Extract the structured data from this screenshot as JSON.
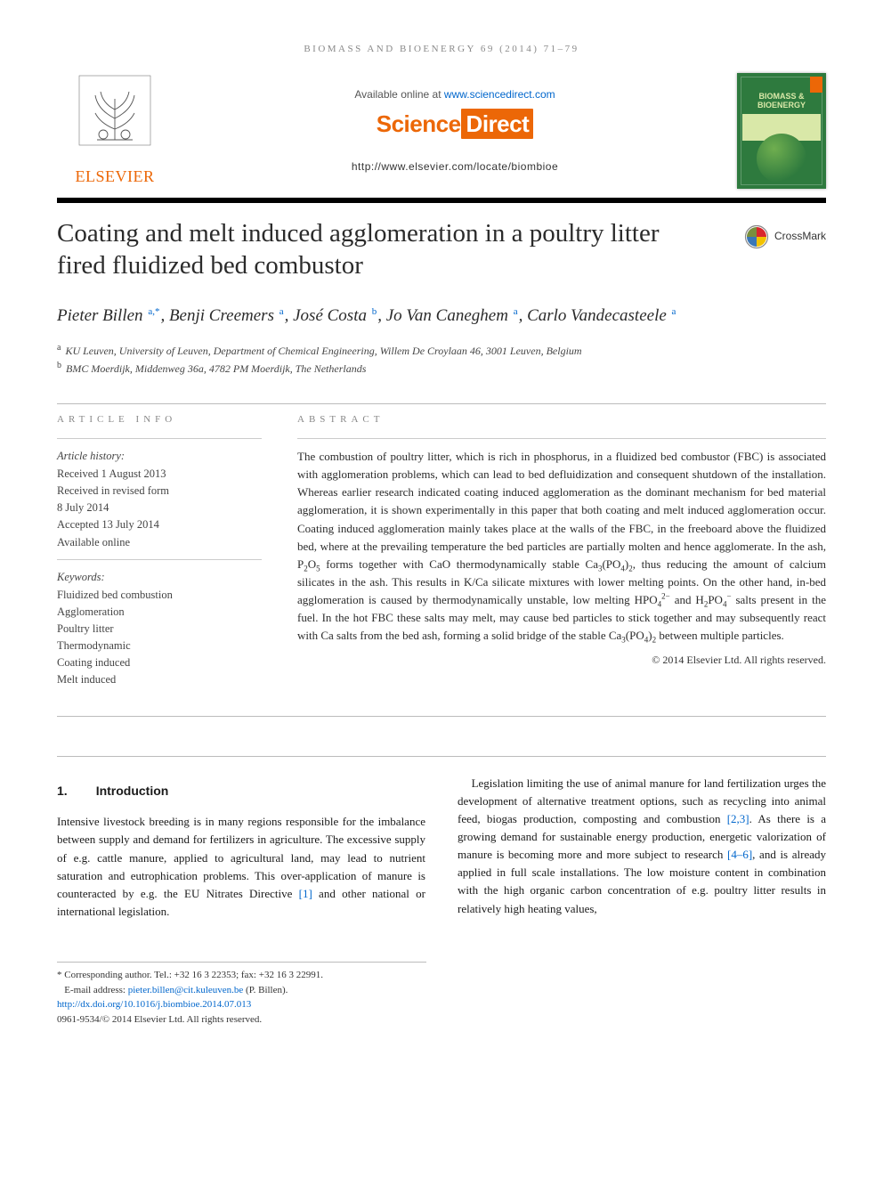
{
  "running_head": "BIOMASS AND BIOENERGY 69 (2014) 71–79",
  "masthead": {
    "publisher_brand": "ELSEVIER",
    "publisher_color": "#ec6707",
    "available_prefix": "Available online at ",
    "available_link": "www.sciencedirect.com",
    "sd_logo_left": "Science",
    "sd_logo_right": "Direct",
    "journal_home": "http://www.elsevier.com/locate/biombioe",
    "cover": {
      "journal_name_line1": "BIOMASS &",
      "journal_name_line2": "BIOENERGY",
      "bg_color": "#2e7a3e",
      "accent_color": "#d9e8a8"
    },
    "crossmark_label": "CrossMark"
  },
  "article": {
    "title": "Coating and melt induced agglomeration in a poultry litter fired fluidized bed combustor",
    "authors_html": "Pieter Billen <sup>a,*</sup>, Benji Creemers <sup>a</sup>, José Costa <sup>b</sup>, Jo Van Caneghem <sup>a</sup>, Carlo Vandecasteele <sup>a</sup>",
    "affiliations": {
      "a": "KU Leuven, University of Leuven, Department of Chemical Engineering, Willem De Croylaan 46, 3001 Leuven, Belgium",
      "b": "BMC Moerdijk, Middenweg 36a, 4782 PM Moerdijk, The Netherlands"
    }
  },
  "info": {
    "article_info_label": "ARTICLE INFO",
    "abstract_label": "ABSTRACT",
    "history_label": "Article history:",
    "history": [
      "Received 1 August 2013",
      "Received in revised form",
      "8 July 2014",
      "Accepted 13 July 2014",
      "Available online"
    ],
    "keywords_label": "Keywords:",
    "keywords": [
      "Fluidized bed combustion",
      "Agglomeration",
      "Poultry litter",
      "Thermodynamic",
      "Coating induced",
      "Melt induced"
    ]
  },
  "abstract_html": "The combustion of poultry litter, which is rich in phosphorus, in a fluidized bed combustor (FBC) is associated with agglomeration problems, which can lead to bed defluidization and consequent shutdown of the installation. Whereas earlier research indicated coating induced agglomeration as the dominant mechanism for bed material agglomeration, it is shown experimentally in this paper that both coating and melt induced agglomeration occur. Coating induced agglomeration mainly takes place at the walls of the FBC, in the freeboard above the fluidized bed, where at the prevailing temperature the bed particles are partially molten and hence agglomerate. In the ash, P<sub>2</sub>O<sub>5</sub> forms together with CaO thermodynamically stable Ca<sub>3</sub>(PO<sub>4</sub>)<sub>2</sub>, thus reducing the amount of calcium silicates in the ash. This results in K/Ca silicate mixtures with lower melting points. On the other hand, in-bed agglomeration is caused by thermodynamically unstable, low melting HPO<sub>4</sub><sup>2−</sup> and H<sub>2</sub>PO<sub>4</sub><sup>−</sup> salts present in the fuel. In the hot FBC these salts may melt, may cause bed particles to stick together and may subsequently react with Ca salts from the bed ash, forming a solid bridge of the stable Ca<sub>3</sub>(PO<sub>4</sub>)<sub>2</sub> between multiple particles.",
  "copyright": "© 2014 Elsevier Ltd. All rights reserved.",
  "body": {
    "section_number": "1.",
    "section_title": "Introduction",
    "col1_html": "Intensive livestock breeding is in many regions responsible for the imbalance between supply and demand for fertilizers in agriculture. The excessive supply of e.g. cattle manure, applied to agricultural land, may lead to nutrient saturation and eutrophication problems. This over-application of manure is counteracted by e.g. the EU Nitrates Directive <a class=\"ref\" href=\"#\">[1]</a> and other national or international legislation.",
    "col2_html": "Legislation limiting the use of animal manure for land fertilization urges the development of alternative treatment options, such as recycling into animal feed, biogas production, composting and combustion <a class=\"ref\" href=\"#\">[2,3]</a>. As there is a growing demand for sustainable energy production, energetic valorization of manure is becoming more and more subject to research <a class=\"ref\" href=\"#\">[4–6]</a>, and is already applied in full scale installations. The low moisture content in combination with the high organic carbon concentration of e.g. poultry litter results in relatively high heating values,"
  },
  "footnotes": {
    "corresponding": "* Corresponding author. Tel.: +32 16 3 22353; fax: +32 16 3 22991.",
    "email_label": "E-mail address: ",
    "email": "pieter.billen@cit.kuleuven.be",
    "email_suffix": " (P. Billen).",
    "doi": "http://dx.doi.org/10.1016/j.biombioe.2014.07.013",
    "issn_line": "0961-9534/© 2014 Elsevier Ltd. All rights reserved."
  },
  "colors": {
    "link": "#0066cc",
    "text": "#1a1a1a",
    "muted": "#8a8a8a",
    "rule": "#bbbbbb",
    "elsevier_orange": "#ec6707"
  }
}
